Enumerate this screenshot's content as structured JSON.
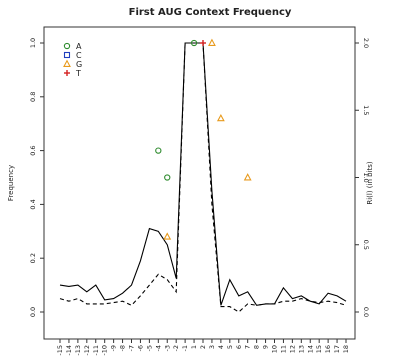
{
  "chart_data": {
    "type": "line",
    "title": "First AUG Context Frequency",
    "ylabel": "Frequency",
    "y2label": "Ri(l) (in bits)",
    "x": [
      -15,
      -14,
      -13,
      -12,
      -11,
      -10,
      -9,
      -8,
      -7,
      -6,
      -5,
      -4,
      -3,
      -2,
      -1,
      1,
      2,
      3,
      4,
      5,
      6,
      7,
      8,
      9,
      10,
      11,
      12,
      13,
      14,
      15,
      16,
      17,
      18
    ],
    "xtick_labels": [
      "-15",
      "-14",
      "-13",
      "-12",
      "-11",
      "-10",
      "-9",
      "-8",
      "-7",
      "-6",
      "-5",
      "-4",
      "-3",
      "-2",
      "-1",
      "1",
      "2",
      "3",
      "4",
      "5",
      "6",
      "7",
      "8",
      "9",
      "10",
      "11",
      "12",
      "13",
      "14",
      "15",
      "16",
      "17",
      "18"
    ],
    "ylim": [
      0,
      1.0
    ],
    "y_ticks": [
      "0.0",
      "0.2",
      "0.4",
      "0.6",
      "0.8",
      "1.0"
    ],
    "y2lim": [
      0,
      2.0
    ],
    "y2_ticks": [
      "0.0",
      "0.5",
      "1.0",
      "1.5",
      "2.0"
    ],
    "legend": {
      "position": "top-left",
      "entries": [
        {
          "label": "A",
          "marker": "circle",
          "color": "#2e8b2e"
        },
        {
          "label": "C",
          "marker": "square",
          "color": "#1f3fbf"
        },
        {
          "label": "G",
          "marker": "triangle",
          "color": "#e89a1c"
        },
        {
          "label": "T",
          "marker": "plus",
          "color": "#d42020"
        }
      ]
    },
    "series": [
      {
        "style": "solid",
        "color": "#000000",
        "axis": "right",
        "values": [
          0.2,
          0.19,
          0.2,
          0.15,
          0.2,
          0.09,
          0.1,
          0.14,
          0.2,
          0.38,
          0.62,
          0.6,
          0.5,
          0.25,
          2.0,
          2.0,
          2.0,
          0.9,
          0.05,
          0.24,
          0.12,
          0.15,
          0.05,
          0.06,
          0.06,
          0.18,
          0.1,
          0.12,
          0.08,
          0.06,
          0.14,
          0.12,
          0.08
        ]
      },
      {
        "style": "dashed",
        "color": "#000000",
        "axis": "right",
        "values": [
          0.1,
          0.08,
          0.1,
          0.06,
          0.06,
          0.06,
          0.07,
          0.08,
          0.05,
          0.12,
          0.2,
          0.28,
          0.24,
          0.15,
          2.0,
          2.0,
          2.0,
          0.8,
          0.04,
          0.04,
          0.0,
          0.06,
          0.05,
          0.06,
          0.06,
          0.08,
          0.08,
          0.1,
          0.08,
          0.07,
          0.08,
          0.07,
          0.05
        ]
      }
    ],
    "points": [
      {
        "x": -4,
        "y": 0.6,
        "marker": "circle",
        "color": "#2e8b2e"
      },
      {
        "x": -3,
        "y": 0.5,
        "marker": "circle",
        "color": "#2e8b2e"
      },
      {
        "x": -3,
        "y": 0.28,
        "marker": "triangle",
        "color": "#e89a1c"
      },
      {
        "x": 1,
        "y": 1.0,
        "marker": "circle",
        "color": "#2e8b2e"
      },
      {
        "x": 2,
        "y": 1.0,
        "marker": "plus",
        "color": "#d42020"
      },
      {
        "x": 3,
        "y": 1.0,
        "marker": "triangle",
        "color": "#e89a1c"
      },
      {
        "x": 4,
        "y": 0.72,
        "marker": "triangle",
        "color": "#e89a1c"
      },
      {
        "x": 7,
        "y": 0.5,
        "marker": "triangle",
        "color": "#e89a1c"
      }
    ],
    "grid": false
  }
}
